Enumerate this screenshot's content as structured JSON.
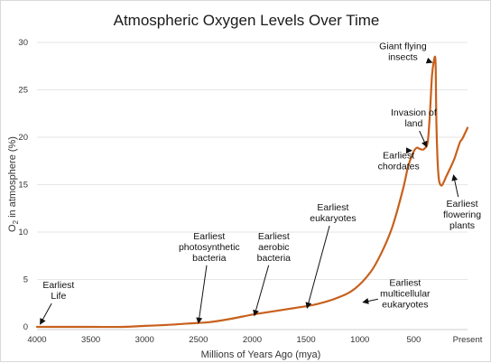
{
  "chart_data": {
    "type": "line",
    "title": "Atmospheric Oxygen Levels Over Time",
    "xlabel": "Millions of Years Ago (mya)",
    "ylabel_main": "O",
    "ylabel_sub": "2",
    "ylabel_rest": " in atmosphere (%)",
    "xlim": [
      4000,
      0
    ],
    "ylim": [
      0,
      30
    ],
    "grid": "horizontal",
    "legend": "none",
    "x_ticks": [
      4000,
      3500,
      3000,
      2500,
      2000,
      1500,
      1000,
      500,
      0
    ],
    "x_tick_labels": [
      "4000",
      "3500",
      "3000",
      "2500",
      "2000",
      "1500",
      "1000",
      "500",
      "Present"
    ],
    "y_ticks": [
      0,
      5,
      10,
      15,
      20,
      25,
      30
    ],
    "y_tick_labels": [
      "0",
      "5",
      "10",
      "15",
      "20",
      "25",
      "30"
    ],
    "colors": {
      "line": "#c8601c",
      "grid": "#e6e6e6",
      "arrow": "#111111"
    },
    "series": [
      {
        "x": [
          4000,
          3500,
          3200,
          3000,
          2800,
          2600,
          2400,
          2200,
          2000,
          1800,
          1600,
          1400,
          1200,
          1050,
          900,
          800,
          700,
          600,
          550,
          500,
          470,
          450,
          420,
          400,
          370,
          350,
          330,
          310,
          300,
          295,
          290,
          280,
          270,
          260,
          240,
          220,
          200,
          150,
          120,
          100,
          70,
          50,
          20,
          0
        ],
        "y": [
          0,
          0,
          0,
          0.1,
          0.2,
          0.35,
          0.5,
          0.85,
          1.3,
          1.65,
          2.0,
          2.4,
          3.1,
          4.0,
          5.8,
          7.8,
          10.5,
          14.5,
          17.0,
          18.5,
          18.9,
          18.8,
          18.7,
          18.8,
          19.5,
          22.5,
          26.5,
          28.2,
          28.4,
          27.0,
          22.0,
          18.0,
          16.0,
          15.2,
          14.9,
          15.3,
          15.8,
          17.0,
          17.8,
          18.5,
          19.5,
          19.8,
          20.5,
          21.0
        ]
      }
    ],
    "annotations": [
      {
        "lines": [
          "Earliest",
          "Life"
        ],
        "x": 3800,
        "y": 3.8,
        "arrow_to": [
          3970,
          0.3
        ]
      },
      {
        "lines": [
          "Earliest",
          "photosynthetic",
          "bacteria"
        ],
        "x": 2400,
        "y": 8.4,
        "arrow_to": [
          2500,
          0.4
        ]
      },
      {
        "lines": [
          "Earliest",
          "aerobic",
          "bacteria"
        ],
        "x": 1800,
        "y": 8.4,
        "arrow_to": [
          1980,
          1.2
        ]
      },
      {
        "lines": [
          "Earliest",
          "eukaryotes"
        ],
        "x": 1250,
        "y": 12.0,
        "arrow_to": [
          1490,
          2.0
        ]
      },
      {
        "lines": [
          "Earliest",
          "multicellular",
          "eukaryotes"
        ],
        "x": 580,
        "y": 3.5,
        "arrow_to": [
          970,
          2.6
        ]
      },
      {
        "lines": [
          "Earliest",
          "chordates"
        ],
        "x": 640,
        "y": 17.5,
        "arrow_to": [
          520,
          18.6
        ]
      },
      {
        "lines": [
          "Invasion of",
          "land"
        ],
        "x": 500,
        "y": 22.0,
        "arrow_to": [
          380,
          19.0
        ]
      },
      {
        "lines": [
          "Giant flying",
          "insects"
        ],
        "x": 600,
        "y": 29.0,
        "arrow_to": [
          330,
          27.9
        ]
      },
      {
        "lines": [
          "Earliest",
          "flowering",
          "plants"
        ],
        "x": 50,
        "y": 11.8,
        "arrow_to": [
          130,
          16.0
        ]
      }
    ]
  }
}
